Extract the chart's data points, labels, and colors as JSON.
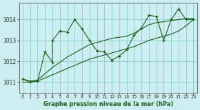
{
  "xlabel": "Graphe pression niveau de la mer (hPa)",
  "bg_color": "#cceef0",
  "grid_color": "#88cccc",
  "line_color": "#1a5c1a",
  "marker_color": "#1a5c1a",
  "xlim": [
    -0.5,
    23.5
  ],
  "ylim": [
    1010.5,
    1014.8
  ],
  "yticks": [
    1011,
    1012,
    1013,
    1014
  ],
  "xticks": [
    0,
    1,
    2,
    3,
    4,
    5,
    6,
    7,
    8,
    9,
    10,
    11,
    12,
    13,
    14,
    15,
    16,
    17,
    18,
    19,
    20,
    21,
    22,
    23
  ],
  "series_main_x": [
    0,
    1,
    2,
    3,
    4,
    4,
    5,
    6,
    7,
    8,
    9,
    10,
    11,
    12,
    13,
    14,
    15,
    16,
    17,
    18,
    19,
    20,
    21,
    22,
    23
  ],
  "series_main_y": [
    1011.15,
    1011.0,
    1011.05,
    1012.45,
    1011.95,
    1013.0,
    1013.45,
    1013.4,
    1014.0,
    1013.55,
    1013.0,
    1012.5,
    1012.45,
    1012.05,
    1012.25,
    1012.55,
    1013.25,
    1013.6,
    1014.2,
    1014.15,
    1013.0,
    1014.0,
    1014.5,
    1014.0,
    1014.0
  ],
  "series_low_x": [
    0,
    1,
    2,
    3,
    4,
    5,
    6,
    7,
    8,
    9,
    10,
    11,
    12,
    13,
    14,
    15,
    16,
    17,
    18,
    19,
    20,
    21,
    22,
    23
  ],
  "series_low_y": [
    1011.0,
    1011.0,
    1011.05,
    1011.2,
    1011.35,
    1011.5,
    1011.65,
    1011.8,
    1011.95,
    1012.1,
    1012.2,
    1012.3,
    1012.4,
    1012.5,
    1012.6,
    1012.7,
    1012.85,
    1013.0,
    1013.1,
    1013.2,
    1013.3,
    1013.45,
    1013.7,
    1014.0
  ],
  "series_high_x": [
    0,
    1,
    2,
    3,
    4,
    5,
    6,
    7,
    8,
    9,
    10,
    11,
    12,
    13,
    14,
    15,
    16,
    17,
    18,
    19,
    20,
    21,
    22,
    23
  ],
  "series_high_y": [
    1011.15,
    1011.05,
    1011.1,
    1011.4,
    1011.7,
    1011.95,
    1012.2,
    1012.4,
    1012.6,
    1012.8,
    1012.9,
    1013.0,
    1013.1,
    1013.15,
    1013.2,
    1013.35,
    1013.55,
    1013.75,
    1013.85,
    1013.9,
    1013.95,
    1014.0,
    1014.05,
    1014.05
  ]
}
